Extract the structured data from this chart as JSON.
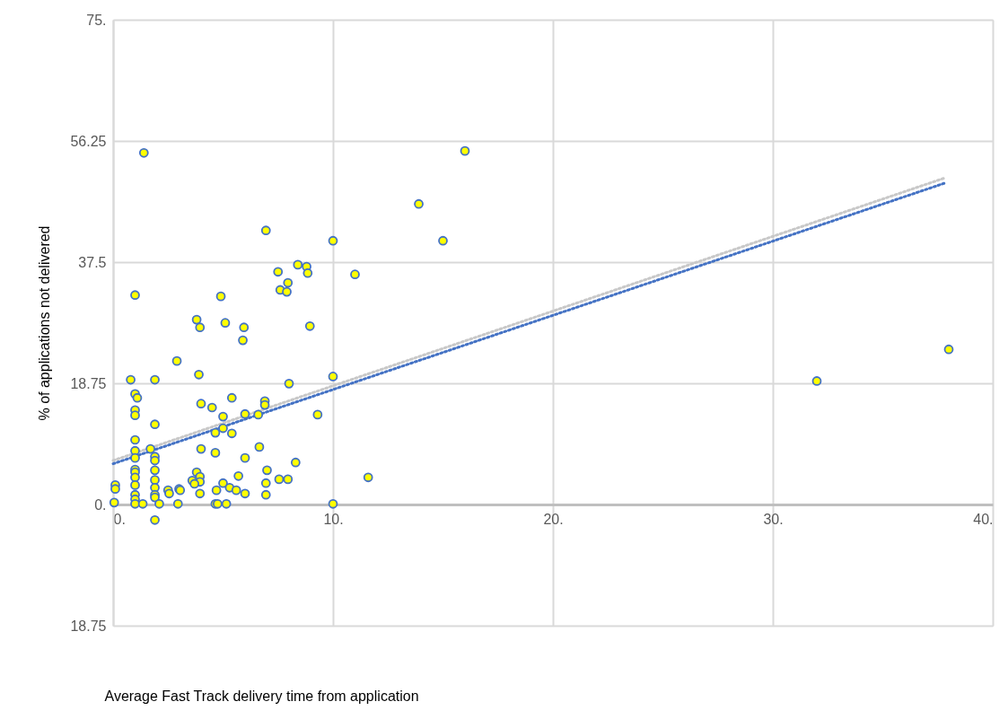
{
  "chart_data": {
    "type": "scatter",
    "xlabel": "Average Fast Track delivery time from application",
    "ylabel": "% of applications not delivered",
    "xlim": [
      0,
      40
    ],
    "xticks": [
      {
        "value": 0,
        "label": "0."
      },
      {
        "value": 10,
        "label": "10."
      },
      {
        "value": 20,
        "label": "20."
      },
      {
        "value": 30,
        "label": "30."
      },
      {
        "value": 40,
        "label": "40."
      }
    ],
    "ylim": [
      -18.75,
      75
    ],
    "yticks": [
      {
        "value": -18.75,
        "label": "18.75"
      },
      {
        "value": 0,
        "label": "0."
      },
      18.75,
      37.5,
      56.25,
      {
        "value": 75,
        "label": "75."
      }
    ],
    "grid": true,
    "series": [
      {
        "color": "#ffff00",
        "marker": "circle",
        "x": [
          0.05,
          0.1,
          0.1,
          0.8,
          1,
          1,
          1.1,
          1,
          1,
          1,
          1,
          1,
          1,
          1,
          1,
          1,
          1,
          1,
          1,
          1.35,
          1.4,
          1.7,
          1.9,
          1.9,
          1.9,
          1.9,
          1.9,
          1.9,
          1.9,
          1.9,
          1.9,
          1.9,
          2.1,
          2.5,
          2.55,
          2.9,
          2.95,
          3.0,
          3.05,
          3.9,
          4.0,
          4.5,
          5.4,
          5.0,
          6.0,
          6.6,
          6.9,
          6.9,
          5.0,
          4.65,
          5.4,
          8.0,
          10,
          9.3,
          4.0,
          4.65,
          6.65,
          6.0,
          8.3,
          7.0,
          5.7,
          3.8,
          3.95,
          3.6,
          3.95,
          3.7,
          5.0,
          5.3,
          4.7,
          5.6,
          6.0,
          3.95,
          6.95,
          7.55,
          7.95,
          6.95,
          4.65,
          4.75,
          5.15,
          10,
          6.95,
          10,
          8.4,
          8.8,
          8.85,
          7.5,
          11.0,
          7.95,
          7.6,
          7.9,
          4.9,
          3.8,
          3.95,
          5.1,
          5.95,
          5.9,
          8.95,
          16.0,
          13.9,
          15.0,
          11.6,
          32.0,
          38.0
        ],
        "values": [
          0.3,
          3,
          2.4,
          19.3,
          32.4,
          17.1,
          16.5,
          14.6,
          13.8,
          10,
          8.3,
          7.2,
          5.4,
          5,
          4.2,
          3,
          1.5,
          0.8,
          0.1,
          0.1,
          54.4,
          8.6,
          19.3,
          12.4,
          7.4,
          6.8,
          5.3,
          3.8,
          2.6,
          1.5,
          1.1,
          -2.4,
          0.1,
          2.2,
          1.7,
          22.2,
          0.1,
          2.4,
          2.2,
          20.1,
          15.6,
          15,
          16.5,
          13.6,
          14.0,
          13.9,
          16.0,
          15.4,
          11.8,
          11.1,
          11.0,
          18.7,
          19.8,
          13.9,
          8.6,
          8.0,
          8.9,
          7.2,
          6.5,
          5.3,
          4.4,
          5.0,
          4.3,
          3.7,
          3.5,
          3.2,
          3.3,
          2.6,
          2.2,
          2.2,
          1.7,
          1.7,
          3.3,
          3.9,
          3.9,
          1.5,
          0.1,
          0.1,
          0.1,
          0.1,
          42.4,
          40.8,
          37.1,
          36.8,
          35.8,
          36.0,
          35.6,
          34.3,
          33.2,
          32.9,
          32.2,
          28.6,
          27.4,
          28.1,
          27.4,
          25.4,
          27.6,
          54.7,
          46.5,
          40.8,
          4.2,
          19.1,
          24.0
        ]
      },
      {
        "type": "line",
        "color": "#c8c8c8",
        "line_style": "dotted",
        "marker": "none",
        "x": [
          0,
          37.8
        ],
        "values": [
          6.8,
          50.5
        ]
      },
      {
        "type": "line",
        "color": "#4472c4",
        "line_style": "dotted",
        "marker": "none",
        "x": [
          0,
          37.8
        ],
        "values": [
          6.3,
          49.7
        ]
      }
    ]
  }
}
